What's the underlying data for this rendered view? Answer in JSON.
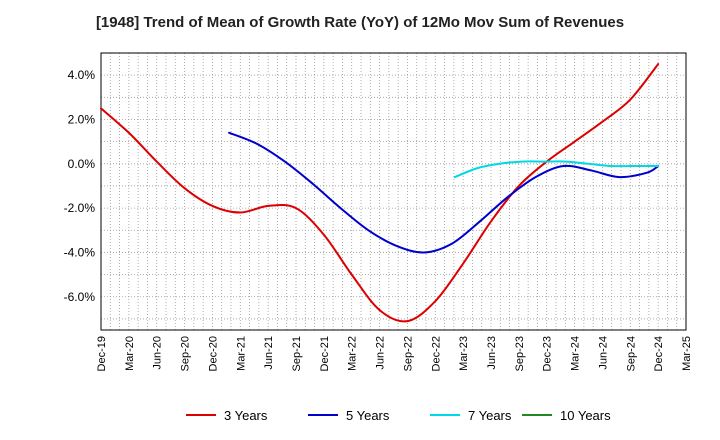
{
  "chart_data": {
    "type": "line",
    "title": "[1948]  Trend of Mean of Growth Rate (YoY) of 12Mo Mov Sum of Revenues",
    "xlabel": "",
    "ylabel": "",
    "ylim": [
      -7.5,
      5.0
    ],
    "grid": true,
    "legend_position": "bottom",
    "y_ticks": [
      {
        "value": 4.0,
        "label": "4.0%"
      },
      {
        "value": 2.0,
        "label": "2.0%"
      },
      {
        "value": 0.0,
        "label": "0.0%"
      },
      {
        "value": -2.0,
        "label": "-2.0%"
      },
      {
        "value": -4.0,
        "label": "-4.0%"
      },
      {
        "value": -6.0,
        "label": "-6.0%"
      }
    ],
    "x_ticks": [
      "Dec-19",
      "Mar-20",
      "Jun-20",
      "Sep-20",
      "Dec-20",
      "Mar-21",
      "Jun-21",
      "Sep-21",
      "Dec-21",
      "Mar-22",
      "Jun-22",
      "Sep-22",
      "Dec-22",
      "Mar-23",
      "Jun-23",
      "Sep-23",
      "Dec-23",
      "Mar-24",
      "Jun-24",
      "Sep-24",
      "Dec-24",
      "Mar-25"
    ],
    "series": [
      {
        "name": "3 Years",
        "color": "#dd0000",
        "points": [
          [
            0,
            2.5
          ],
          [
            1,
            1.4
          ],
          [
            2,
            0.1
          ],
          [
            3,
            -1.1
          ],
          [
            4,
            -1.9
          ],
          [
            5,
            -2.2
          ],
          [
            6,
            -1.9
          ],
          [
            7,
            -2.0
          ],
          [
            8,
            -3.2
          ],
          [
            9,
            -5.0
          ],
          [
            10,
            -6.6
          ],
          [
            11,
            -7.1
          ],
          [
            12,
            -6.2
          ],
          [
            13,
            -4.5
          ],
          [
            14,
            -2.6
          ],
          [
            15,
            -1.0
          ],
          [
            16,
            0.1
          ],
          [
            17,
            1.0
          ],
          [
            18,
            1.9
          ],
          [
            19,
            2.9
          ],
          [
            20,
            4.5
          ]
        ]
      },
      {
        "name": "5 Years",
        "color": "#0000cc",
        "points": [
          [
            4.6,
            1.4
          ],
          [
            5.6,
            0.9
          ],
          [
            6.6,
            0.1
          ],
          [
            7.6,
            -0.9
          ],
          [
            8.6,
            -2.0
          ],
          [
            9.6,
            -3.0
          ],
          [
            10.6,
            -3.7
          ],
          [
            11.6,
            -4.0
          ],
          [
            12.6,
            -3.6
          ],
          [
            13.6,
            -2.6
          ],
          [
            14.6,
            -1.5
          ],
          [
            15.6,
            -0.6
          ],
          [
            16.6,
            -0.1
          ],
          [
            17.6,
            -0.3
          ],
          [
            18.6,
            -0.6
          ],
          [
            19.6,
            -0.4
          ],
          [
            20,
            -0.1
          ]
        ]
      },
      {
        "name": "7 Years",
        "color": "#00d8e6",
        "points": [
          [
            12.7,
            -0.6
          ],
          [
            13.5,
            -0.2
          ],
          [
            14.3,
            0.0
          ],
          [
            15.1,
            0.1
          ],
          [
            15.9,
            0.1
          ],
          [
            16.7,
            0.1
          ],
          [
            17.5,
            0.0
          ],
          [
            18.3,
            -0.1
          ],
          [
            19.1,
            -0.1
          ],
          [
            20,
            -0.1
          ]
        ]
      },
      {
        "name": "10 Years",
        "color": "#228822",
        "points": []
      }
    ]
  }
}
